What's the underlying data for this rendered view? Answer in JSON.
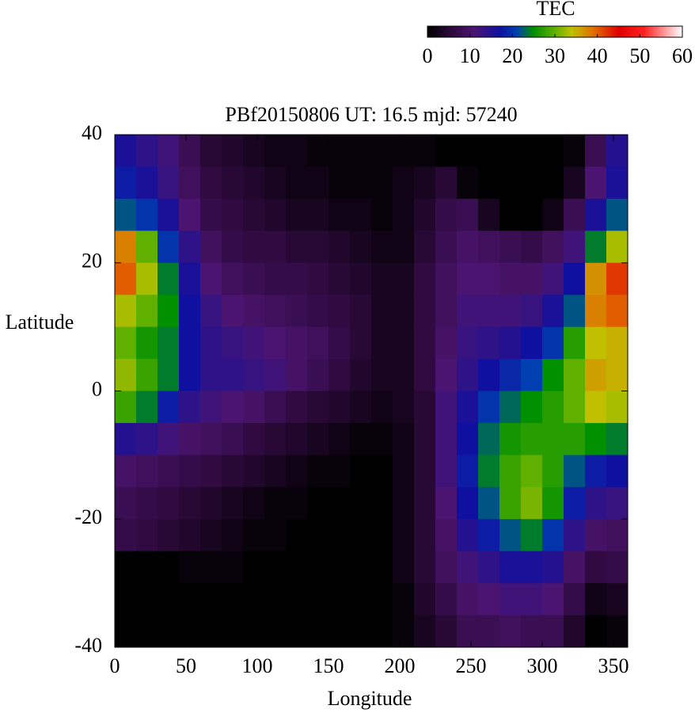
{
  "chart_data": {
    "type": "heatmap",
    "title": "PBf20150806  UT: 16.5  mjd: 57240",
    "xlabel": "Longitude",
    "ylabel": "Latitude",
    "x": [
      7.5,
      22.5,
      37.5,
      52.5,
      67.5,
      82.5,
      97.5,
      112.5,
      127.5,
      142.5,
      157.5,
      172.5,
      187.5,
      202.5,
      217.5,
      232.5,
      247.5,
      262.5,
      277.5,
      292.5,
      307.5,
      322.5,
      337.5,
      352.5
    ],
    "y": [
      37.5,
      32.5,
      27.5,
      22.5,
      17.5,
      12.5,
      7.5,
      2.5,
      -2.5,
      -7.5,
      -12.5,
      -17.5,
      -22.5,
      -27.5,
      -32.5,
      -37.5
    ],
    "z": [
      [
        16,
        14,
        12,
        8,
        5,
        4,
        3,
        2,
        2,
        1,
        1,
        1,
        1,
        1,
        1,
        0,
        0,
        0,
        0,
        0,
        0,
        1,
        8,
        15
      ],
      [
        18,
        16,
        13,
        9,
        6,
        5,
        4,
        3,
        2,
        2,
        1,
        1,
        1,
        2,
        3,
        5,
        1,
        0,
        0,
        0,
        0,
        3,
        11,
        16
      ],
      [
        22,
        20,
        16,
        11,
        7,
        6,
        5,
        4,
        3,
        3,
        2,
        2,
        1,
        2,
        4,
        7,
        8,
        3,
        0,
        0,
        2,
        8,
        16,
        22
      ],
      [
        38,
        30,
        20,
        14,
        9,
        7,
        6,
        6,
        5,
        5,
        4,
        3,
        2,
        2,
        5,
        8,
        10,
        9,
        8,
        7,
        9,
        12,
        24,
        33
      ],
      [
        40,
        33,
        24,
        16,
        11,
        9,
        8,
        7,
        7,
        6,
        5,
        4,
        3,
        3,
        6,
        9,
        11,
        11,
        10,
        10,
        12,
        17,
        37,
        42
      ],
      [
        33,
        30,
        25,
        17,
        13,
        11,
        10,
        9,
        8,
        7,
        6,
        5,
        3,
        3,
        6,
        9,
        12,
        12,
        12,
        13,
        16,
        22,
        38,
        40
      ],
      [
        30,
        26,
        24,
        17,
        14,
        13,
        12,
        11,
        10,
        9,
        7,
        5,
        3,
        3,
        6,
        10,
        13,
        14,
        15,
        17,
        20,
        27,
        34,
        35
      ],
      [
        32,
        28,
        24,
        17,
        14,
        14,
        13,
        12,
        10,
        8,
        6,
        4,
        3,
        3,
        6,
        11,
        14,
        17,
        19,
        21,
        25,
        30,
        36,
        35
      ],
      [
        28,
        24,
        18,
        14,
        12,
        11,
        10,
        8,
        6,
        5,
        4,
        3,
        2,
        3,
        5,
        12,
        16,
        20,
        23,
        25,
        27,
        30,
        34,
        33
      ],
      [
        15,
        14,
        12,
        10,
        9,
        8,
        6,
        5,
        4,
        3,
        2,
        1,
        1,
        2,
        5,
        12,
        17,
        23,
        26,
        27,
        27,
        27,
        25,
        24
      ],
      [
        10,
        9,
        8,
        7,
        6,
        5,
        4,
        3,
        2,
        1,
        1,
        0,
        0,
        2,
        5,
        12,
        18,
        24,
        28,
        30,
        27,
        22,
        18,
        17
      ],
      [
        8,
        7,
        6,
        5,
        4,
        3,
        2,
        1,
        1,
        0,
        0,
        0,
        0,
        2,
        5,
        11,
        17,
        22,
        28,
        31,
        26,
        18,
        14,
        13
      ],
      [
        7,
        6,
        5,
        4,
        3,
        2,
        1,
        1,
        0,
        0,
        0,
        0,
        0,
        2,
        5,
        10,
        15,
        18,
        22,
        24,
        20,
        14,
        10,
        9
      ],
      [
        0,
        0,
        0,
        1,
        1,
        1,
        0,
        0,
        0,
        0,
        0,
        0,
        0,
        2,
        5,
        9,
        12,
        14,
        16,
        16,
        15,
        10,
        6,
        7
      ],
      [
        0,
        0,
        0,
        0,
        0,
        0,
        0,
        0,
        0,
        0,
        0,
        0,
        0,
        1,
        4,
        7,
        10,
        11,
        12,
        12,
        11,
        7,
        2,
        3
      ],
      [
        0,
        0,
        0,
        0,
        0,
        0,
        0,
        0,
        0,
        0,
        0,
        0,
        0,
        1,
        3,
        5,
        8,
        8,
        9,
        8,
        8,
        4,
        0,
        1
      ]
    ],
    "xlim": [
      0,
      360
    ],
    "xticks": [
      0,
      50,
      100,
      150,
      200,
      250,
      300,
      350
    ],
    "ylim": [
      -40,
      40
    ],
    "yticks": [
      -40,
      -20,
      0,
      20,
      40
    ],
    "colorscale": [
      [
        0,
        "#000000"
      ],
      [
        6,
        "#300a40"
      ],
      [
        11,
        "#4a1470"
      ],
      [
        17,
        "#1010a0"
      ],
      [
        21,
        "#0040b0"
      ],
      [
        25,
        "#009000"
      ],
      [
        30,
        "#60b000"
      ],
      [
        34,
        "#c0c000"
      ],
      [
        39,
        "#e07000"
      ],
      [
        45,
        "#e00000"
      ],
      [
        51,
        "#ff2020"
      ],
      [
        60,
        "#ffffff"
      ]
    ],
    "colorbar": {
      "label": "TEC",
      "lim": [
        0,
        60
      ],
      "ticks": [
        0,
        10,
        20,
        30,
        40,
        50,
        60
      ]
    }
  }
}
